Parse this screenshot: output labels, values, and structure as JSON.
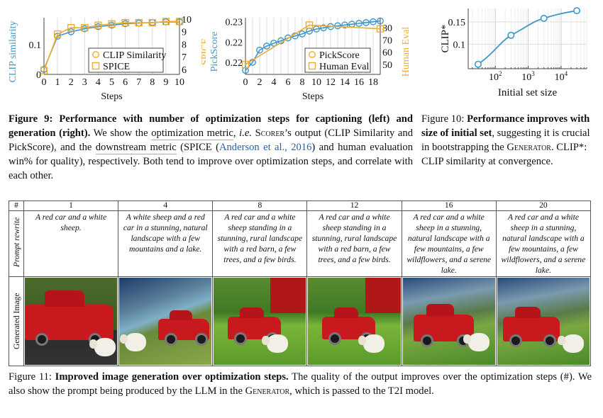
{
  "chart_data": [
    {
      "type": "line",
      "title": "",
      "xlabel": "Steps",
      "ylabel": "CLIP similarity",
      "ylabel_right": "SPICE",
      "x": [
        0,
        1,
        2,
        3,
        4,
        5,
        6,
        7,
        8,
        9,
        10
      ],
      "xlim": [
        0,
        10
      ],
      "xticks": [
        "0",
        "1",
        "2",
        "3",
        "4",
        "5",
        "6",
        "7",
        "8",
        "9",
        "10"
      ],
      "ylim": [
        0,
        0.19
      ],
      "yticks": [
        {
          "v": 0,
          "label": "0"
        },
        {
          "v": 0.1,
          "label": "0.1"
        }
      ],
      "ylim_right": [
        5.6,
        10.1
      ],
      "yticks_right": [
        "6",
        "7",
        "8",
        "9",
        "10"
      ],
      "series": [
        {
          "name": "CLIP Similarity",
          "axis": "left",
          "color": "#3d97c8",
          "marker": "circle",
          "values": [
            0.017,
            0.128,
            0.143,
            0.153,
            0.16,
            0.165,
            0.17,
            0.172,
            0.174,
            0.176,
            0.176
          ]
        },
        {
          "name": "SPICE",
          "axis": "right",
          "color": "#f0ac2e",
          "marker": "square",
          "values": [
            5.9,
            8.8,
            9.3,
            9.3,
            9.5,
            9.6,
            9.7,
            9.7,
            9.7,
            9.8,
            9.8
          ]
        }
      ],
      "legend": "center-right",
      "grid": true
    },
    {
      "type": "line",
      "title": "",
      "xlabel": "Steps",
      "ylabel": "PickScore",
      "ylabel_right": "Human Eval",
      "x": [
        0,
        1,
        2,
        3,
        4,
        5,
        6,
        7,
        8,
        9,
        10,
        11,
        12,
        13,
        14,
        15,
        16,
        17,
        18,
        19
      ],
      "xlim": [
        0,
        19
      ],
      "xticks": [
        "0",
        "2",
        "4",
        "6",
        "8",
        "10",
        "12",
        "14",
        "16",
        "18"
      ],
      "ylim": [
        0.2145,
        0.2285
      ],
      "yticks": [
        {
          "v": 0.2275,
          "label": "0.23"
        },
        {
          "v": 0.2225,
          "label": "0.22"
        },
        {
          "v": 0.2175,
          "label": "0.22"
        }
      ],
      "ylim_right": [
        42,
        88
      ],
      "yticks_right": [
        "50",
        "60",
        "70",
        "80"
      ],
      "series": [
        {
          "name": "PickScore",
          "axis": "left",
          "color": "#3d97c8",
          "marker": "circle",
          "values": [
            0.2155,
            0.2175,
            0.2205,
            0.2215,
            0.2222,
            0.2228,
            0.2235,
            0.224,
            0.2245,
            0.2252,
            0.2257,
            0.226,
            0.2263,
            0.2265,
            0.2267,
            0.2269,
            0.2271,
            0.2273,
            0.2275,
            0.2277
          ]
        },
        {
          "name": "Human Eval",
          "axis": "right",
          "color": "#f0ac2e",
          "marker": "square",
          "x": [
            0,
            9,
            19
          ],
          "values": [
            50,
            82,
            79
          ]
        }
      ],
      "legend": "center-right",
      "grid": true
    },
    {
      "type": "line",
      "title": "",
      "xlabel": "Initial set size",
      "ylabel": "CLIP*",
      "xscale": "log",
      "xlim": [
        15,
        60000
      ],
      "xticks": [
        {
          "v": 100,
          "label": "10",
          "sup": "2"
        },
        {
          "v": 1000,
          "label": "10",
          "sup": "3"
        },
        {
          "v": 10000,
          "label": "10",
          "sup": "4"
        }
      ],
      "ylim": [
        0.045,
        0.18
      ],
      "yticks": [
        {
          "v": 0.1,
          "label": "0.1"
        },
        {
          "v": 0.15,
          "label": "0.15"
        }
      ],
      "series": [
        {
          "name": "CLIP*",
          "color": "#3d97c8",
          "marker": "circle",
          "x": [
            30,
            300,
            3000,
            30000
          ],
          "values": [
            0.055,
            0.12,
            0.158,
            0.175
          ]
        }
      ],
      "grid": true
    }
  ],
  "fig9": {
    "label": "Figure 9: ",
    "bold": "Performance with number of optimization steps for captioning (left) and generation (right).",
    "t1": " We show the ",
    "u1": "optimization metric",
    "t2": ", ",
    "ie": "i.e.",
    "t3": " ",
    "scorer": "Scorer",
    "t4": "’s output (CLIP Similarity and PickScore), and the ",
    "u2": "downstream metric",
    "t5": " (SPICE (",
    "link": "Anderson et al., 2016",
    "t6": ") and human evaluation win% for quality), respectively. Both tend to improve over optimization steps, and correlate with each other."
  },
  "fig10": {
    "label": "Figure 10: ",
    "bold": "Performance improves with size of initial set",
    "t1": ", suggesting it is crucial in bootstrapping the ",
    "gen": "Generator",
    "t2": ". CLIP*: CLIP similarity at convergence."
  },
  "table": {
    "hash": "#",
    "row_prompt": "Prompt rewrite",
    "row_image": "Generated Image",
    "columns": [
      {
        "step": "1",
        "prompt": "A red car and a white sheep."
      },
      {
        "step": "4",
        "prompt": "A white sheep and a red car in a stunning, natural landscape with a few mountains and a lake."
      },
      {
        "step": "8",
        "prompt": "A red car and a white sheep standing in a stunning, rural landscape with a red barn, a few trees, and a few birds."
      },
      {
        "step": "12",
        "prompt": "A red car and a white sheep standing in a stunning, rural landscape with a red barn, a few trees, and a few birds."
      },
      {
        "step": "16",
        "prompt": "A red car and a white sheep in a stunning, natural landscape with a few mountains, a few wildflowers, and a serene lake."
      },
      {
        "step": "20",
        "prompt": "A red car and a white sheep in a stunning, natural landscape with a few mountains, a few wildflowers, and a serene lake."
      }
    ]
  },
  "fig11": {
    "label": "Figure 11: ",
    "bold": "Improved image generation over optimization steps.",
    "t1": " The quality of the output improves over the optimization steps (#). We also show the prompt being produced by the LLM in the ",
    "gen": "Generator",
    "t2": ", which is passed to the T2I model."
  }
}
